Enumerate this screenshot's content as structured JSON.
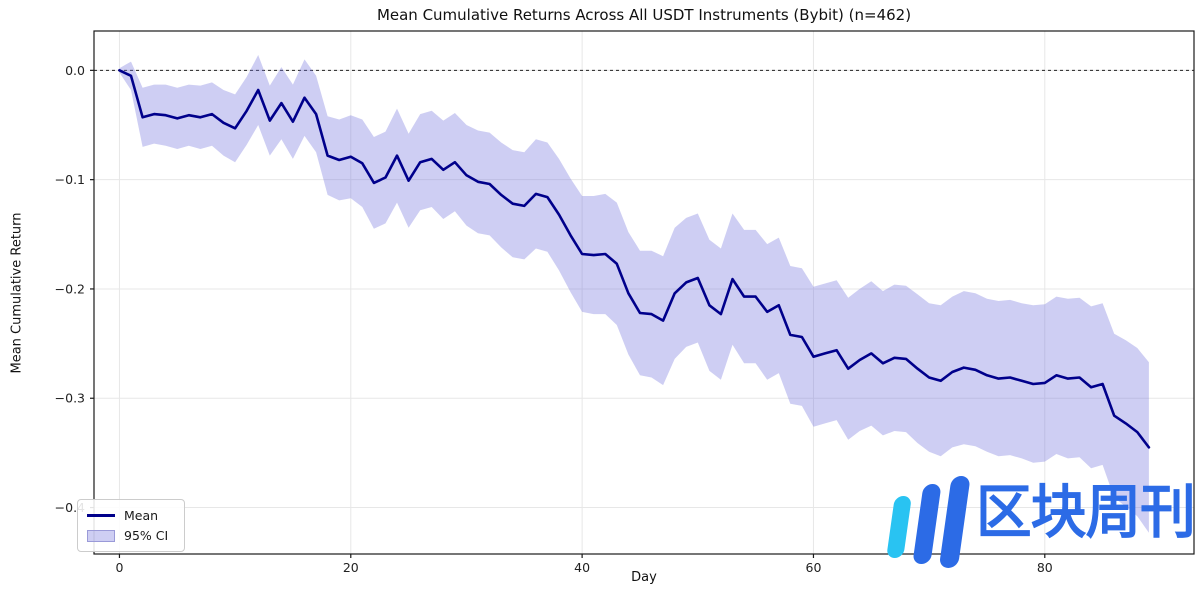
{
  "chart_data": {
    "type": "line",
    "title": "Mean Cumulative Returns Across All USDT Instruments (Bybit) (n=462)",
    "xlabel": "Day",
    "ylabel": "Mean Cumulative Return",
    "x_start": 0,
    "x_step": 1,
    "n_points": 90,
    "series": [
      {
        "name": "Mean",
        "color": "#00008B",
        "values": [
          0.0,
          -0.005,
          -0.043,
          -0.04,
          -0.041,
          -0.044,
          -0.041,
          -0.043,
          -0.04,
          -0.048,
          -0.053,
          -0.037,
          -0.018,
          -0.046,
          -0.03,
          -0.047,
          -0.025,
          -0.04,
          -0.078,
          -0.082,
          -0.079,
          -0.085,
          -0.103,
          -0.098,
          -0.078,
          -0.101,
          -0.084,
          -0.081,
          -0.091,
          -0.084,
          -0.096,
          -0.102,
          -0.104,
          -0.114,
          -0.122,
          -0.124,
          -0.113,
          -0.116,
          -0.132,
          -0.151,
          -0.168,
          -0.169,
          -0.168,
          -0.177,
          -0.204,
          -0.222,
          -0.223,
          -0.229,
          -0.204,
          -0.194,
          -0.19,
          -0.215,
          -0.223,
          -0.191,
          -0.207,
          -0.207,
          -0.221,
          -0.215,
          -0.242,
          -0.244,
          -0.262,
          -0.259,
          -0.256,
          -0.273,
          -0.265,
          -0.259,
          -0.268,
          -0.263,
          -0.264,
          -0.273,
          -0.281,
          -0.284,
          -0.276,
          -0.272,
          -0.274,
          -0.279,
          -0.282,
          -0.281,
          -0.284,
          -0.287,
          -0.286,
          -0.279,
          -0.282,
          -0.281,
          -0.29,
          -0.287,
          -0.316,
          -0.323,
          -0.331,
          -0.345
        ]
      },
      {
        "name": "95% CI",
        "band_of": "Mean",
        "fill": "rgba(114,114,222,0.35)",
        "half_width": [
          0.002,
          0.013,
          0.027,
          0.027,
          0.028,
          0.028,
          0.028,
          0.029,
          0.029,
          0.03,
          0.031,
          0.031,
          0.032,
          0.032,
          0.033,
          0.034,
          0.035,
          0.035,
          0.036,
          0.037,
          0.038,
          0.04,
          0.042,
          0.042,
          0.043,
          0.043,
          0.044,
          0.044,
          0.045,
          0.045,
          0.046,
          0.047,
          0.047,
          0.048,
          0.049,
          0.049,
          0.05,
          0.05,
          0.051,
          0.052,
          0.053,
          0.054,
          0.055,
          0.056,
          0.056,
          0.057,
          0.058,
          0.059,
          0.06,
          0.059,
          0.059,
          0.06,
          0.06,
          0.06,
          0.061,
          0.061,
          0.062,
          0.062,
          0.063,
          0.063,
          0.064,
          0.064,
          0.064,
          0.065,
          0.065,
          0.066,
          0.066,
          0.067,
          0.067,
          0.068,
          0.068,
          0.069,
          0.069,
          0.07,
          0.07,
          0.07,
          0.071,
          0.071,
          0.071,
          0.072,
          0.072,
          0.072,
          0.073,
          0.073,
          0.074,
          0.074,
          0.075,
          0.076,
          0.077,
          0.078
        ]
      }
    ],
    "xticks": {
      "values": [
        0,
        20,
        40,
        60,
        80
      ],
      "labels": [
        "0",
        "20",
        "40",
        "60",
        "80"
      ]
    },
    "yticks": {
      "values": [
        0.0,
        -0.1,
        -0.2,
        -0.3,
        -0.4
      ],
      "labels": [
        "0.0",
        "−0.1",
        "−0.2",
        "−0.3",
        "−0.4"
      ]
    },
    "xlim": [
      -2.2,
      92.9
    ],
    "ylim": [
      -0.4425,
      0.036
    ],
    "grid": true,
    "zero_line": true,
    "legend": {
      "position": "lower left",
      "entries": [
        "Mean",
        "95% CI"
      ]
    }
  },
  "style_colors": {
    "mean_line": "#00008B",
    "band_fill": "rgba(114,114,222,0.35)",
    "grid_line": "#e7e7e7",
    "zero_line": "#222222",
    "spine": "#1a1a1a",
    "tick_text": "#222222"
  },
  "watermark": {
    "text": "区块周刊",
    "text_color": "#2C6BE6",
    "mark_bar_colors": [
      "#29C3F2",
      "#2C6BE6",
      "#2C6BE6"
    ]
  }
}
